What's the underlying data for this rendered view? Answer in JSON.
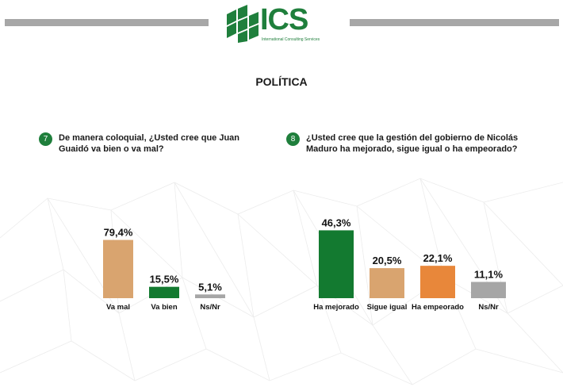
{
  "header": {
    "logo_text": "ICS",
    "logo_subtitle": "International Consulting Services",
    "bar_color": "#a7a7a7",
    "brand_color": "#1f7f3c"
  },
  "page_title": "POLÍTICA",
  "questions": [
    {
      "number": "7",
      "text_line1": "De manera coloquial, ¿Usted cree que Juan",
      "text_line2": "Guaidó va bien o va mal?"
    },
    {
      "number": "8",
      "text_line1": "¿Usted cree que la gestión del gobierno de Nicolás",
      "text_line2": "Maduro ha mejorado, sigue igual o ha empeorado?"
    }
  ],
  "chart_data": [
    {
      "type": "bar",
      "categories": [
        "Va mal",
        "Va bien",
        "Ns/Nr"
      ],
      "values": [
        79.4,
        15.5,
        5.1
      ],
      "value_labels": [
        "79,4%",
        "15,5%",
        "5,1%"
      ],
      "colors": [
        "#d9a46f",
        "#137a30",
        "#a6a6a6"
      ],
      "ylim": [
        0,
        100
      ],
      "unit": "%"
    },
    {
      "type": "bar",
      "categories": [
        "Ha mejorado",
        "Sigue igual",
        "Ha empeorado",
        "Ns/Nr"
      ],
      "values": [
        46.3,
        20.5,
        22.1,
        11.1
      ],
      "value_labels": [
        "46,3%",
        "20,5%",
        "22,1%",
        "11,1%"
      ],
      "colors": [
        "#137a30",
        "#d9a46f",
        "#e8873a",
        "#a6a6a6"
      ],
      "ylim": [
        0,
        50
      ],
      "unit": "%"
    }
  ]
}
